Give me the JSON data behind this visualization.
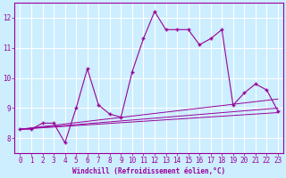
{
  "xlabel": "Windchill (Refroidissement éolien,°C)",
  "bg_color": "#cceeff",
  "grid_color": "#ffffff",
  "line_color": "#990099",
  "xlim": [
    -0.5,
    23.5
  ],
  "ylim": [
    7.5,
    12.5
  ],
  "yticks": [
    8,
    9,
    10,
    11,
    12
  ],
  "xticks": [
    0,
    1,
    2,
    3,
    4,
    5,
    6,
    7,
    8,
    9,
    10,
    11,
    12,
    13,
    14,
    15,
    16,
    17,
    18,
    19,
    20,
    21,
    22,
    23
  ],
  "main_series_x": [
    0,
    1,
    2,
    3,
    4,
    5,
    6,
    7,
    8,
    9,
    10,
    11,
    12,
    13,
    14,
    15,
    16,
    17,
    18,
    19,
    20,
    21,
    22,
    23
  ],
  "main_series_y": [
    8.3,
    8.3,
    8.5,
    8.5,
    7.85,
    9.0,
    10.3,
    9.1,
    8.8,
    8.7,
    10.2,
    11.3,
    12.2,
    11.6,
    11.6,
    11.6,
    11.1,
    11.3,
    11.6,
    9.1,
    9.5,
    9.8,
    9.6,
    8.9
  ],
  "trend_lines": [
    {
      "x": [
        0,
        23
      ],
      "y": [
        8.3,
        9.3
      ]
    },
    {
      "x": [
        0,
        23
      ],
      "y": [
        8.3,
        8.85
      ]
    },
    {
      "x": [
        0,
        23
      ],
      "y": [
        8.3,
        9.0
      ]
    }
  ]
}
